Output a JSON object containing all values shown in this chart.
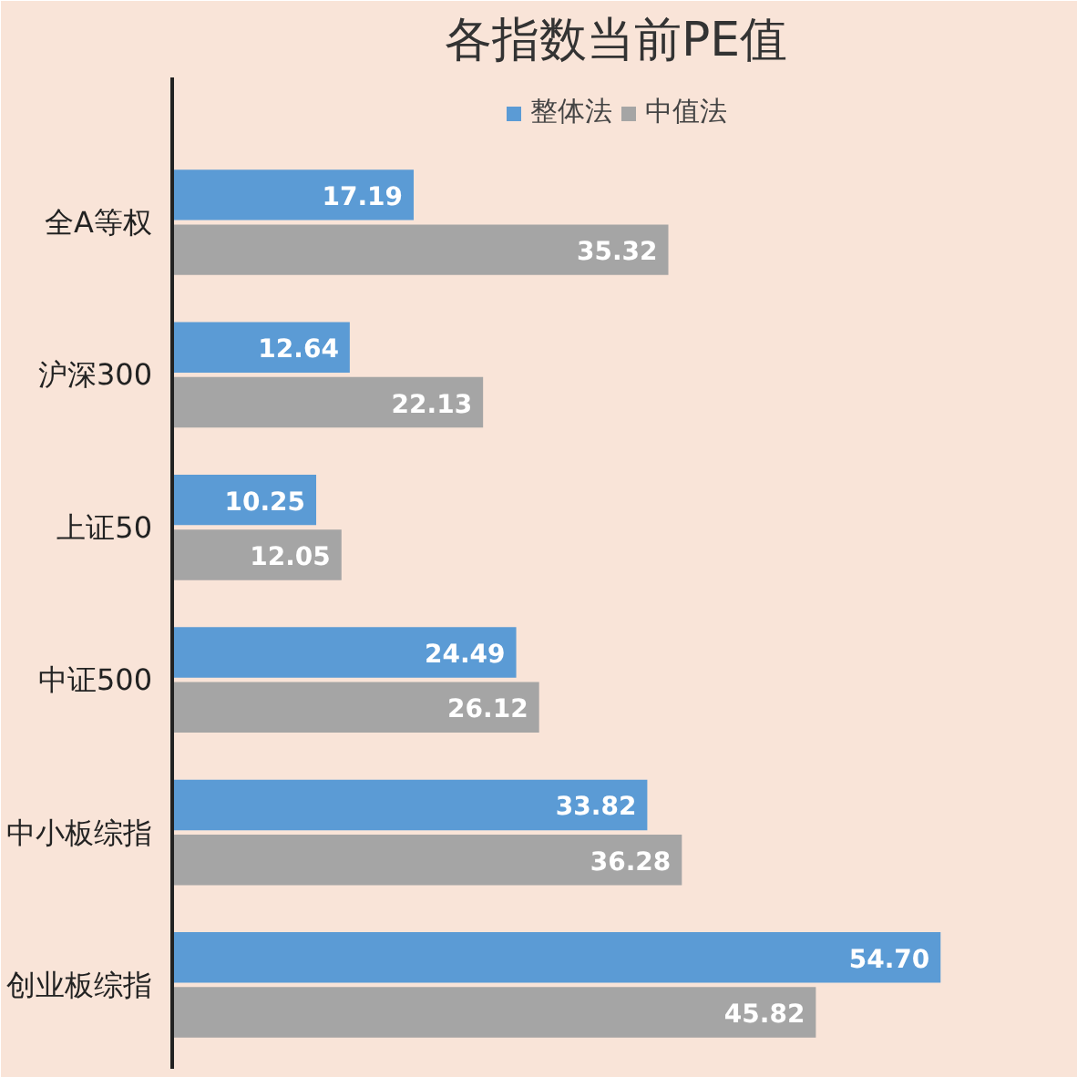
{
  "chart_data": {
    "type": "bar",
    "orientation": "horizontal",
    "title": "各指数当前PE值",
    "categories": [
      "全A等权",
      "沪深300",
      "上证50",
      "中证500",
      "中小板综指",
      "创业板综指"
    ],
    "series": [
      {
        "name": "整体法",
        "color": "#5b9bd5",
        "values": [
          17.19,
          12.64,
          10.25,
          24.49,
          33.82,
          54.7
        ],
        "value_labels": [
          "17.19",
          "12.64",
          "10.25",
          "24.49",
          "33.82",
          "54.70"
        ]
      },
      {
        "name": "中值法",
        "color": "#a5a5a5",
        "values": [
          35.32,
          22.13,
          12.05,
          26.12,
          36.28,
          45.82
        ],
        "value_labels": [
          "35.32",
          "22.13",
          "12.05",
          "26.12",
          "36.28",
          "45.82"
        ]
      }
    ],
    "legend": "top",
    "grid": false
  }
}
